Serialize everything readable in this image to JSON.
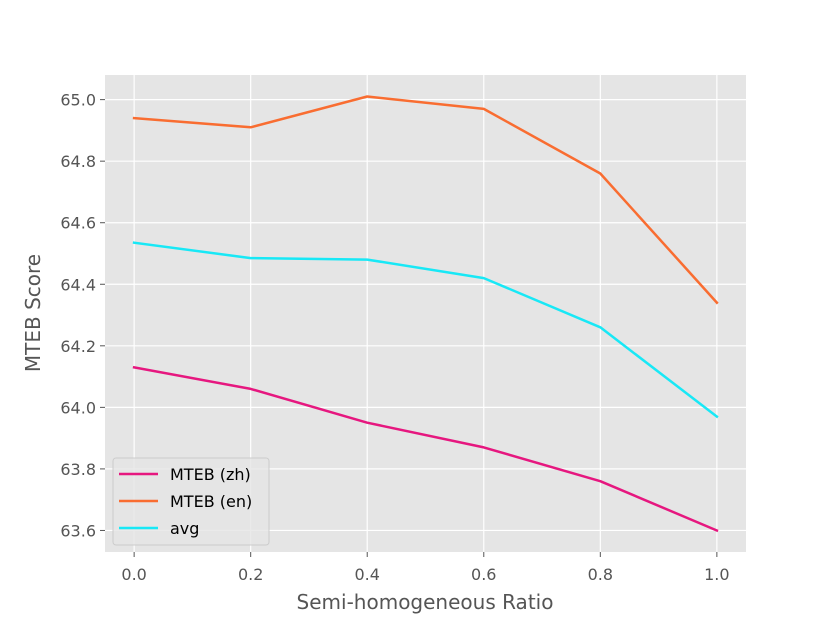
{
  "chart_data": {
    "type": "line",
    "title": "",
    "xlabel": "Semi-homogeneous Ratio",
    "ylabel": "MTEB Score",
    "x": [
      0.0,
      0.2,
      0.4,
      0.6,
      0.8,
      1.0
    ],
    "x_tick_labels": [
      "0.0",
      "0.2",
      "0.4",
      "0.6",
      "0.8",
      "1.0"
    ],
    "y_ticks": [
      63.6,
      63.8,
      64.0,
      64.2,
      64.4,
      64.6,
      64.8,
      65.0
    ],
    "y_tick_labels": [
      "63.6",
      "63.8",
      "64.0",
      "64.2",
      "64.4",
      "64.6",
      "64.8",
      "65.0"
    ],
    "xlim": [
      -0.05,
      1.05
    ],
    "ylim": [
      63.53,
      65.08
    ],
    "grid": true,
    "legend_position": "lower-left",
    "background_color": "#e5e5e5",
    "grid_color": "#ffffff",
    "series": [
      {
        "name": "MTEB (zh)",
        "color": "#e6177f",
        "values": [
          64.13,
          64.06,
          63.95,
          63.87,
          63.76,
          63.6
        ]
      },
      {
        "name": "MTEB (en)",
        "color": "#f96d31",
        "values": [
          64.94,
          64.91,
          65.01,
          64.97,
          64.76,
          64.34
        ]
      },
      {
        "name": "avg",
        "color": "#18e8f6",
        "values": [
          64.535,
          64.485,
          64.48,
          64.42,
          64.26,
          63.97
        ]
      }
    ]
  }
}
